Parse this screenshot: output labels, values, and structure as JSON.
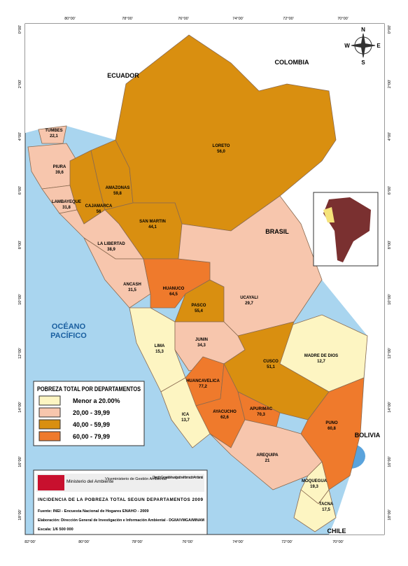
{
  "map": {
    "countries": [
      "ECUADOR",
      "COLOMBIA",
      "BRASIL",
      "BOLIVIA",
      "CHILE"
    ],
    "ocean": "OCÉANO PACÍFICO",
    "compass": [
      "N",
      "S",
      "E",
      "W"
    ],
    "graticule_top": [
      "80°00'",
      "78°00'",
      "76°00'",
      "74°00'",
      "72°00'",
      "70°00'"
    ],
    "graticule_bottom": [
      "82°00'",
      "80°00'",
      "78°00'",
      "76°00'",
      "74°00'",
      "72°00'",
      "70°00'"
    ],
    "graticule_left": [
      "0°00'",
      "2°00'",
      "4°00'",
      "6°00'",
      "8°00'",
      "10°00'",
      "12°00'",
      "14°00'",
      "16°00'",
      "18°00'"
    ],
    "graticule_right": [
      "0°00'",
      "2°00'",
      "4°00'",
      "6°00'",
      "8°00'",
      "10°00'",
      "12°00'",
      "14°00'",
      "16°00'",
      "18°00'"
    ],
    "departments": [
      {
        "name": "TUMBES",
        "value": "22,1"
      },
      {
        "name": "PIURA",
        "value": "39,6"
      },
      {
        "name": "LAMBAYEQUE",
        "value": "31,8"
      },
      {
        "name": "CAJAMARCA",
        "value": "56"
      },
      {
        "name": "AMAZONAS",
        "value": "59,8"
      },
      {
        "name": "LORETO",
        "value": "56,0"
      },
      {
        "name": "SAN MARTIN",
        "value": "44,1"
      },
      {
        "name": "LA LIBERTAD",
        "value": "38,9"
      },
      {
        "name": "ANCASH",
        "value": "31,5"
      },
      {
        "name": "HUANUCO",
        "value": "64,5"
      },
      {
        "name": "PASCO",
        "value": "55,4"
      },
      {
        "name": "UCAYALI",
        "value": "29,7"
      },
      {
        "name": "LIMA",
        "value": "15,3"
      },
      {
        "name": "JUNIN",
        "value": "34,3"
      },
      {
        "name": "MADRE DE DIOS",
        "value": "12,7"
      },
      {
        "name": "HUANCAVELICA",
        "value": "77,2"
      },
      {
        "name": "CUSCO",
        "value": "51,1"
      },
      {
        "name": "AYACUCHO",
        "value": "62,6"
      },
      {
        "name": "APURIMAC",
        "value": "70,3"
      },
      {
        "name": "ICA",
        "value": "13,7"
      },
      {
        "name": "PUNO",
        "value": "60,8"
      },
      {
        "name": "AREQUIPA",
        "value": "21"
      },
      {
        "name": "MOQUEGUA",
        "value": "19,3"
      },
      {
        "name": "TACNA",
        "value": "17,5"
      }
    ]
  },
  "legend": {
    "title": "POBREZA TOTAL POR DEPARTAMENTOS",
    "items": [
      {
        "label": "Menor a 20.00%",
        "color": "#fdf5c2"
      },
      {
        "label": "20,00  -  39,99",
        "color": "#f7c6ad"
      },
      {
        "label": "40,00  -  59,99",
        "color": "#d98f10"
      },
      {
        "label": "60,00  -  79,99",
        "color": "#ef7a2c"
      }
    ]
  },
  "footer": {
    "logo": [
      "Ministerio del Ambiente",
      "Viceministerio de Gestión Ambiental",
      "Dirección General de Investigación e Información Ambiental"
    ],
    "title": "INCIDENCIA DE LA POBREZA TOTAL SEGUN DEPARTAMENTOS 2009",
    "source": "Fuente: INEI - Encuesta Nacional de Hogares ENAHO - 2009",
    "credit": "Elaboración: Dirección General de Investigación e Información Ambiental - DGIIA/VMGA/MINAM",
    "scale": "Escala: 1/6 500 000"
  }
}
